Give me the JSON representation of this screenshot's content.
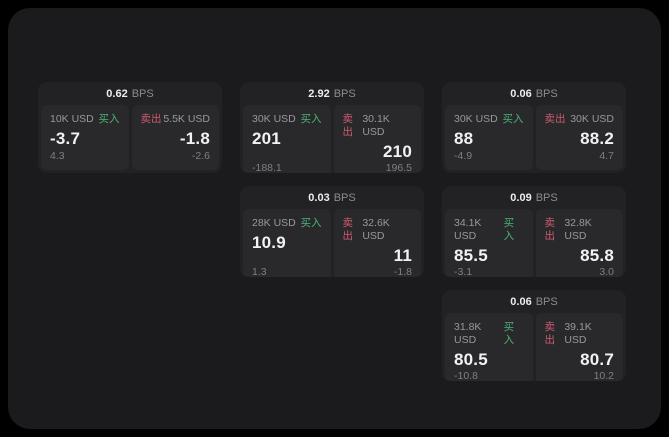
{
  "colors": {
    "background": "#000000",
    "panel": "#1b1b1d",
    "card": "#222225",
    "pane": "#29292c",
    "buy_green": "#4cb378",
    "sell_red": "#cf5a70",
    "text_primary": "#f2f2f3",
    "text_secondary": "#98989d",
    "text_muted": "#7e7e84"
  },
  "cards": [
    {
      "row": 1,
      "col": 1,
      "bps_value": "0.62",
      "bps_unit": "BPS",
      "buy": {
        "amount": "10K USD",
        "tag": "买入",
        "value": "-3.7",
        "sub": "4.3"
      },
      "sell": {
        "tag": "卖出",
        "amount": "5.5K USD",
        "value": "-1.8",
        "sub": "-2.6"
      }
    },
    {
      "row": 1,
      "col": 2,
      "bps_value": "2.92",
      "bps_unit": "BPS",
      "buy": {
        "amount": "30K USD",
        "tag": "买入",
        "value": "201",
        "sub": "-188.1"
      },
      "sell": {
        "tag": "卖出",
        "amount": "30.1K USD",
        "value": "210",
        "sub": "196.5"
      }
    },
    {
      "row": 1,
      "col": 3,
      "bps_value": "0.06",
      "bps_unit": "BPS",
      "buy": {
        "amount": "30K USD",
        "tag": "买入",
        "value": "88",
        "sub": "-4.9"
      },
      "sell": {
        "tag": "卖出",
        "amount": "30K USD",
        "value": "88.2",
        "sub": "4.7"
      }
    },
    {
      "row": 2,
      "col": 2,
      "bps_value": "0.03",
      "bps_unit": "BPS",
      "buy": {
        "amount": "28K USD",
        "tag": "买入",
        "value": "10.9",
        "sub": "1.3"
      },
      "sell": {
        "tag": "卖出",
        "amount": "32.6K USD",
        "value": "11",
        "sub": "-1.8"
      }
    },
    {
      "row": 2,
      "col": 3,
      "bps_value": "0.09",
      "bps_unit": "BPS",
      "buy": {
        "amount": "34.1K USD",
        "tag": "买入",
        "value": "85.5",
        "sub": "-3.1"
      },
      "sell": {
        "tag": "卖出",
        "amount": "32.8K USD",
        "value": "85.8",
        "sub": "3.0"
      }
    },
    {
      "row": 3,
      "col": 3,
      "bps_value": "0.06",
      "bps_unit": "BPS",
      "buy": {
        "amount": "31.8K USD",
        "tag": "买入",
        "value": "80.5",
        "sub": "-10.8"
      },
      "sell": {
        "tag": "卖出",
        "amount": "39.1K USD",
        "value": "80.7",
        "sub": "10.2"
      }
    }
  ]
}
